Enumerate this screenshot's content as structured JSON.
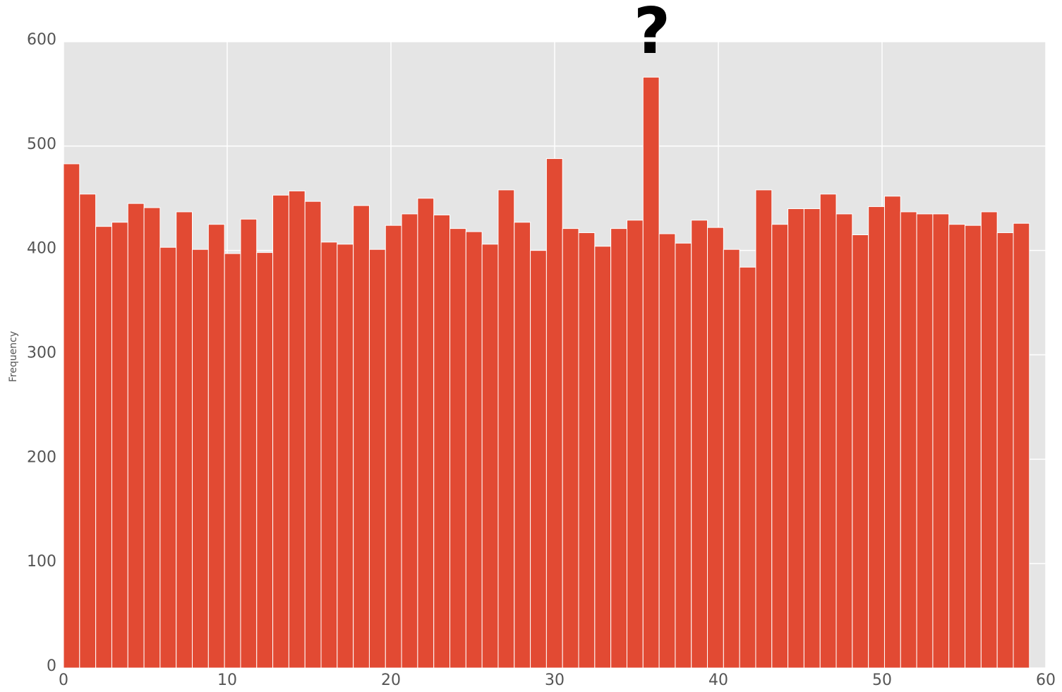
{
  "chart_data": {
    "type": "histogram",
    "ylabel": "Frequency",
    "annotation": "?",
    "bins": [
      0,
      0.983,
      1.967,
      2.95,
      3.933,
      4.917,
      5.9,
      6.883,
      7.867,
      8.85,
      9.833,
      10.817,
      11.8,
      12.783,
      13.767,
      14.75,
      15.733,
      16.717,
      17.7,
      18.683,
      19.667,
      20.65,
      21.633,
      22.617,
      23.6,
      24.583,
      25.567,
      26.55,
      27.533,
      28.517,
      29.5,
      30.483,
      31.467,
      32.45,
      33.433,
      34.417,
      35.4,
      36.383,
      37.367,
      38.35,
      39.333,
      40.317,
      41.3,
      42.283,
      43.267,
      44.25,
      45.233,
      46.217,
      47.2,
      48.183,
      49.167,
      50.15,
      51.133,
      52.117,
      53.1,
      54.083,
      55.067,
      56.05,
      57.033,
      58.017,
      59
    ],
    "values": [
      483,
      454,
      423,
      427,
      445,
      441,
      403,
      437,
      401,
      425,
      397,
      430,
      398,
      453,
      457,
      447,
      408,
      406,
      443,
      401,
      424,
      435,
      450,
      434,
      421,
      418,
      406,
      458,
      427,
      400,
      488,
      421,
      417,
      404,
      421,
      429,
      566,
      416,
      407,
      429,
      422,
      401,
      384,
      458,
      425,
      440,
      440,
      454,
      435,
      415,
      442,
      452,
      437,
      435,
      435,
      425,
      424,
      437,
      417,
      426
    ],
    "color": "#e24a33",
    "xlim": [
      0,
      60
    ],
    "xticks": [
      0,
      10,
      20,
      30,
      40,
      50,
      60
    ],
    "ylim": [
      0,
      600
    ],
    "yticks": [
      0,
      100,
      200,
      300,
      400,
      500,
      600
    ],
    "grid": true
  }
}
